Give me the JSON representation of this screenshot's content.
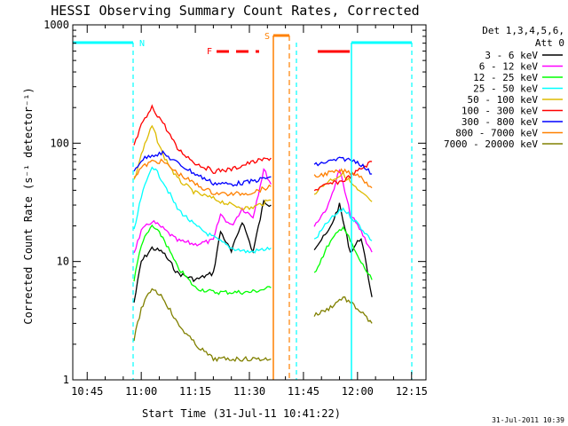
{
  "chart_data": {
    "type": "line",
    "title": "HESSI Observing Summary Count Rates, Corrected",
    "xlabel": "Start Time (31-Jul-11 10:41:22)",
    "ylabel": "Corrected Count Rate (s⁻¹ detector⁻¹)",
    "y_scale": "log",
    "xlim": [
      "10:41",
      "12:19"
    ],
    "ylim": [
      1,
      1000
    ],
    "x_ticks": [
      "10:45",
      "11:00",
      "11:15",
      "11:30",
      "11:45",
      "12:00",
      "12:15"
    ],
    "y_ticks": [
      "1",
      "10",
      "100",
      "1000"
    ],
    "legend_placement": "right-outside",
    "legend_header": [
      "Det 1,3,4,5,6,",
      "Att 0"
    ],
    "footer_date": "31-Jul-2011 10:39",
    "annotations": [
      {
        "label": "N",
        "color": "#00ffff"
      },
      {
        "label": "F",
        "color": "#ff0000"
      },
      {
        "label": "S",
        "color": "#ff8000"
      }
    ],
    "markers": {
      "night_bar_color": "#00ffff",
      "saa_bar_color": "#ff8000",
      "flare_bar_color": "#ff0000"
    },
    "series": [
      {
        "name": "3 - 6 keV",
        "color": "#000000",
        "x": [
          "10:58",
          "11:00",
          "11:03",
          "11:06",
          "11:10",
          "11:15",
          "11:20",
          "11:22",
          "11:25",
          "11:28",
          "11:31",
          "11:34",
          "11:36",
          "11:48",
          "11:52",
          "11:55",
          "11:58",
          "12:01",
          "12:04"
        ],
        "values": [
          4.5,
          10,
          13,
          12,
          8,
          7,
          8,
          18,
          12,
          22,
          12,
          32,
          30,
          13,
          18,
          30,
          12,
          16,
          5
        ]
      },
      {
        "name": "6 - 12 keV",
        "color": "#ff00ff",
        "x": [
          "10:58",
          "11:00",
          "11:03",
          "11:06",
          "11:10",
          "11:15",
          "11:20",
          "11:22",
          "11:25",
          "11:28",
          "11:31",
          "11:34",
          "11:36",
          "11:48",
          "11:52",
          "11:55",
          "11:58",
          "12:01",
          "12:04"
        ],
        "values": [
          12,
          18,
          22,
          19,
          15,
          14,
          15,
          25,
          20,
          28,
          24,
          60,
          45,
          20,
          30,
          60,
          25,
          18,
          12
        ]
      },
      {
        "name": "12 - 25 keV",
        "color": "#00ff00",
        "x": [
          "10:58",
          "11:00",
          "11:03",
          "11:06",
          "11:10",
          "11:15",
          "11:20",
          "11:25",
          "11:30",
          "11:36",
          "11:48",
          "11:52",
          "11:56",
          "12:00",
          "12:04"
        ],
        "values": [
          7,
          14,
          20,
          16,
          9,
          6,
          5.5,
          5.5,
          5.5,
          6,
          8,
          14,
          20,
          11,
          7
        ]
      },
      {
        "name": "25 - 50 keV",
        "color": "#00ffff",
        "x": [
          "10:58",
          "11:00",
          "11:03",
          "11:06",
          "11:10",
          "11:15",
          "11:20",
          "11:25",
          "11:30",
          "11:36",
          "11:48",
          "11:52",
          "11:56",
          "12:00",
          "12:04"
        ],
        "values": [
          18,
          35,
          65,
          48,
          28,
          20,
          16,
          13,
          12,
          13,
          15,
          22,
          28,
          21,
          15
        ]
      },
      {
        "name": "50 - 100 keV",
        "color": "#ddbb00",
        "x": [
          "10:58",
          "11:00",
          "11:03",
          "11:06",
          "11:10",
          "11:15",
          "11:20",
          "11:25",
          "11:30",
          "11:36",
          "11:48",
          "11:52",
          "11:56",
          "12:00",
          "12:04"
        ],
        "values": [
          48,
          80,
          140,
          80,
          50,
          38,
          34,
          30,
          28,
          33,
          38,
          48,
          55,
          40,
          32
        ]
      },
      {
        "name": "100 - 300 keV",
        "color": "#ff0000",
        "x": [
          "10:58",
          "11:00",
          "11:03",
          "11:06",
          "11:10",
          "11:15",
          "11:20",
          "11:25",
          "11:30",
          "11:36",
          "11:48",
          "11:52",
          "11:56",
          "12:00",
          "12:04"
        ],
        "values": [
          95,
          140,
          200,
          150,
          90,
          68,
          58,
          60,
          68,
          75,
          40,
          45,
          48,
          58,
          70
        ]
      },
      {
        "name": "300 - 800 keV",
        "color": "#0000ff",
        "x": [
          "10:58",
          "11:00",
          "11:03",
          "11:06",
          "11:10",
          "11:15",
          "11:20",
          "11:25",
          "11:30",
          "11:36",
          "11:48",
          "11:52",
          "11:56",
          "12:00",
          "12:04"
        ],
        "values": [
          58,
          72,
          80,
          82,
          68,
          55,
          46,
          45,
          47,
          52,
          65,
          70,
          74,
          70,
          55
        ]
      },
      {
        "name": "800 - 7000 keV",
        "color": "#ff8000",
        "x": [
          "10:58",
          "11:00",
          "11:03",
          "11:06",
          "11:10",
          "11:15",
          "11:20",
          "11:25",
          "11:30",
          "11:36",
          "11:48",
          "11:52",
          "11:56",
          "12:00",
          "12:04"
        ],
        "values": [
          52,
          62,
          70,
          70,
          56,
          45,
          38,
          37,
          38,
          43,
          52,
          56,
          58,
          55,
          42
        ]
      },
      {
        "name": "7000 - 20000 keV",
        "color": "#808000",
        "x": [
          "10:58",
          "11:00",
          "11:03",
          "11:06",
          "11:10",
          "11:15",
          "11:20",
          "11:25",
          "11:30",
          "11:36",
          "11:48",
          "11:52",
          "11:56",
          "12:00",
          "12:04"
        ],
        "values": [
          2.2,
          4,
          6,
          5,
          3,
          2,
          1.5,
          1.5,
          1.5,
          1.5,
          3.5,
          4,
          5,
          4,
          3
        ]
      }
    ]
  }
}
